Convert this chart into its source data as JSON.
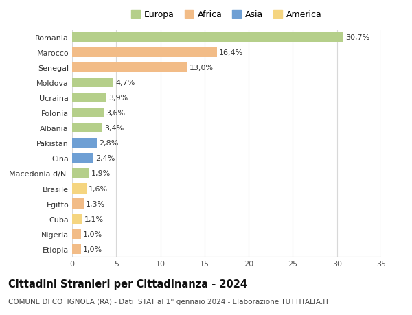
{
  "countries": [
    "Romania",
    "Marocco",
    "Senegal",
    "Moldova",
    "Ucraina",
    "Polonia",
    "Albania",
    "Pakistan",
    "Cina",
    "Macedonia d/N.",
    "Brasile",
    "Egitto",
    "Cuba",
    "Nigeria",
    "Etiopia"
  ],
  "values": [
    30.7,
    16.4,
    13.0,
    4.7,
    3.9,
    3.6,
    3.4,
    2.8,
    2.4,
    1.9,
    1.6,
    1.3,
    1.1,
    1.0,
    1.0
  ],
  "labels": [
    "30,7%",
    "16,4%",
    "13,0%",
    "4,7%",
    "3,9%",
    "3,6%",
    "3,4%",
    "2,8%",
    "2,4%",
    "1,9%",
    "1,6%",
    "1,3%",
    "1,1%",
    "1,0%",
    "1,0%"
  ],
  "colors": [
    "#b5cf8a",
    "#f2bc87",
    "#f2bc87",
    "#b5cf8a",
    "#b5cf8a",
    "#b5cf8a",
    "#b5cf8a",
    "#6e9fd4",
    "#6e9fd4",
    "#b5cf8a",
    "#f5d580",
    "#f2bc87",
    "#f5d580",
    "#f2bc87",
    "#f2bc87"
  ],
  "legend": [
    {
      "label": "Europa",
      "color": "#b5cf8a"
    },
    {
      "label": "Africa",
      "color": "#f2bc87"
    },
    {
      "label": "Asia",
      "color": "#6e9fd4"
    },
    {
      "label": "America",
      "color": "#f5d580"
    }
  ],
  "xlim": [
    0,
    35
  ],
  "xticks": [
    0,
    5,
    10,
    15,
    20,
    25,
    30,
    35
  ],
  "title": "Cittadini Stranieri per Cittadinanza - 2024",
  "subtitle": "COMUNE DI COTIGNOLA (RA) - Dati ISTAT al 1° gennaio 2024 - Elaborazione TUTTITALIA.IT",
  "bg_color": "#ffffff",
  "plot_bg_color": "#ffffff",
  "grid_color": "#d8d8d8",
  "bar_height": 0.65,
  "label_fontsize": 8.0,
  "tick_fontsize": 8.0,
  "title_fontsize": 10.5,
  "subtitle_fontsize": 7.5,
  "legend_fontsize": 9.0
}
